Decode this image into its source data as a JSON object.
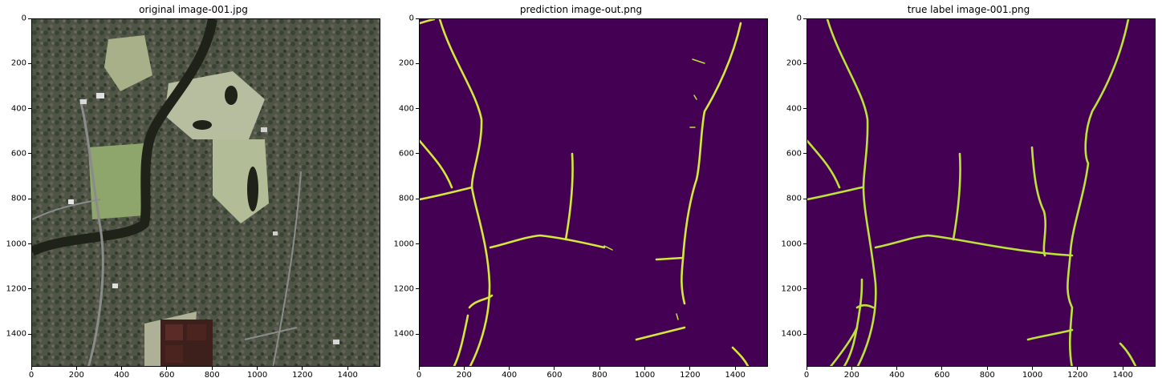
{
  "panels": [
    {
      "title": "original image-001.jpg"
    },
    {
      "title": "prediction image-out.png"
    },
    {
      "title": "true label image-001.png"
    }
  ],
  "axes": {
    "x_ticks": [
      "0",
      "200",
      "400",
      "600",
      "800",
      "1000",
      "1200",
      "1400"
    ],
    "y_ticks": [
      "0",
      "200",
      "400",
      "600",
      "800",
      "1000",
      "1200",
      "1400"
    ],
    "x_max": 1545,
    "y_max": 1545
  },
  "colors": {
    "background_dark": "#440154",
    "road_yellow": "#d4e83b",
    "road_green": "#bde23a",
    "satellite_base": "#4c5440"
  }
}
